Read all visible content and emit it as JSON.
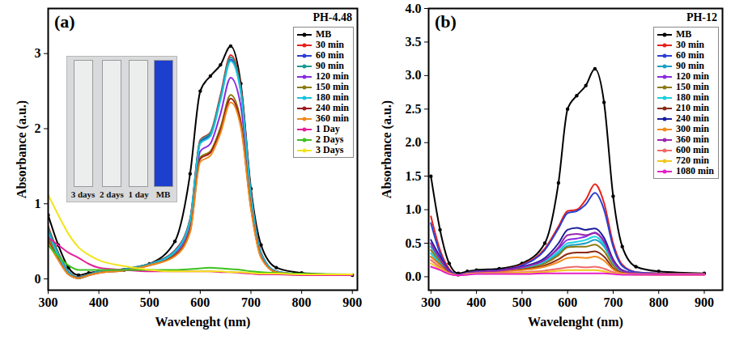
{
  "chart_data": [
    {
      "type": "line",
      "title": "(a)",
      "subtitle": "PH-4.48",
      "xlabel": "Wavelenght (nm)",
      "ylabel": "Absorbance (a.u.)",
      "annotations": [
        "3 days",
        "2 days",
        "1 day",
        "MB"
      ],
      "xlim": [
        300,
        910
      ],
      "xticks": [
        300,
        400,
        500,
        600,
        700,
        800,
        900
      ],
      "ylim": [
        -0.15,
        3.6
      ],
      "yticks": [
        0,
        1,
        2,
        3
      ],
      "grid": false,
      "legend": "top-right",
      "x": [
        300,
        320,
        340,
        360,
        380,
        400,
        450,
        500,
        550,
        580,
        600,
        620,
        640,
        660,
        680,
        700,
        720,
        750,
        800,
        900
      ],
      "series": [
        {
          "name": "MB",
          "color": "#000000",
          "marker": "circle",
          "values": [
            0.85,
            0.45,
            0.15,
            0.05,
            0.08,
            0.1,
            0.12,
            0.2,
            0.5,
            1.4,
            2.5,
            2.7,
            2.85,
            3.1,
            2.6,
            1.2,
            0.45,
            0.15,
            0.08,
            0.05
          ]
        },
        {
          "name": "30 min",
          "color": "#e8221b",
          "values": [
            0.7,
            0.35,
            0.1,
            0.02,
            0.06,
            0.1,
            0.13,
            0.2,
            0.38,
            0.8,
            1.85,
            1.95,
            2.45,
            2.98,
            2.55,
            1.15,
            0.35,
            0.1,
            0.06,
            0.05
          ]
        },
        {
          "name": "60 min",
          "color": "#2a3fd4",
          "values": [
            0.65,
            0.33,
            0.09,
            0.02,
            0.06,
            0.1,
            0.13,
            0.2,
            0.37,
            0.78,
            1.82,
            1.92,
            2.4,
            2.92,
            2.5,
            1.12,
            0.34,
            0.1,
            0.06,
            0.05
          ]
        },
        {
          "name": "90 min",
          "color": "#1a9b8f",
          "values": [
            0.68,
            0.34,
            0.1,
            0.02,
            0.06,
            0.1,
            0.13,
            0.2,
            0.37,
            0.79,
            1.84,
            1.94,
            2.42,
            2.95,
            2.52,
            1.13,
            0.34,
            0.1,
            0.06,
            0.05
          ]
        },
        {
          "name": "120 min",
          "color": "#8a2be2",
          "values": [
            0.6,
            0.3,
            0.08,
            0.01,
            0.05,
            0.09,
            0.12,
            0.19,
            0.34,
            0.72,
            1.7,
            1.8,
            2.2,
            2.68,
            2.3,
            1.05,
            0.32,
            0.09,
            0.06,
            0.05
          ]
        },
        {
          "name": "150 min",
          "color": "#8b7a0c",
          "values": [
            0.55,
            0.28,
            0.07,
            0.01,
            0.05,
            0.09,
            0.12,
            0.19,
            0.32,
            0.66,
            1.62,
            1.7,
            2.02,
            2.45,
            2.1,
            0.97,
            0.3,
            0.09,
            0.06,
            0.05
          ]
        },
        {
          "name": "180 min",
          "color": "#19c3e0",
          "values": [
            0.62,
            0.31,
            0.08,
            0.01,
            0.05,
            0.09,
            0.12,
            0.19,
            0.36,
            0.77,
            1.8,
            1.9,
            2.38,
            2.9,
            2.48,
            1.1,
            0.33,
            0.1,
            0.06,
            0.05
          ]
        },
        {
          "name": "240 min",
          "color": "#9b1c1c",
          "values": [
            0.5,
            0.26,
            0.06,
            0.01,
            0.05,
            0.08,
            0.11,
            0.18,
            0.31,
            0.64,
            1.6,
            1.68,
            1.98,
            2.4,
            2.06,
            0.95,
            0.29,
            0.09,
            0.06,
            0.05
          ]
        },
        {
          "name": "360 min",
          "color": "#f08a1c",
          "values": [
            0.48,
            0.25,
            0.06,
            0.01,
            0.05,
            0.08,
            0.11,
            0.18,
            0.3,
            0.62,
            1.56,
            1.64,
            1.94,
            2.35,
            2.02,
            0.93,
            0.28,
            0.09,
            0.06,
            0.05
          ]
        },
        {
          "name": "1 Day",
          "color": "#e61e9a",
          "values": [
            0.55,
            0.45,
            0.35,
            0.28,
            0.2,
            0.15,
            0.12,
            0.1,
            0.1,
            0.1,
            0.1,
            0.1,
            0.09,
            0.09,
            0.08,
            0.07,
            0.06,
            0.06,
            0.05,
            0.05
          ]
        },
        {
          "name": "2 Days",
          "color": "#3cc21e",
          "values": [
            0.45,
            0.3,
            0.18,
            0.12,
            0.12,
            0.12,
            0.12,
            0.12,
            0.12,
            0.13,
            0.14,
            0.15,
            0.14,
            0.13,
            0.12,
            0.1,
            0.09,
            0.08,
            0.07,
            0.06
          ]
        },
        {
          "name": "3 Days",
          "color": "#f2e41a",
          "values": [
            1.12,
            0.85,
            0.6,
            0.42,
            0.32,
            0.25,
            0.17,
            0.12,
            0.1,
            0.1,
            0.1,
            0.1,
            0.1,
            0.09,
            0.09,
            0.08,
            0.07,
            0.07,
            0.06,
            0.06
          ]
        }
      ]
    },
    {
      "type": "line",
      "title": "(b)",
      "subtitle": "PH-12",
      "xlabel": "Wavelenght (nm)",
      "ylabel": "Absorbance (a.u.)",
      "xlim": [
        295,
        940
      ],
      "xticks": [
        300,
        400,
        500,
        600,
        700,
        800,
        900
      ],
      "ylim": [
        -0.2,
        4.0
      ],
      "yticks": [
        {
          "value": 0,
          "label": "0.0"
        },
        0.5,
        {
          "value": 1,
          "label": "1.0"
        },
        1.5,
        {
          "value": 2,
          "label": "2.0"
        },
        2.5,
        {
          "value": 3,
          "label": "3.0"
        },
        3.5,
        {
          "value": 4,
          "label": "4.0"
        }
      ],
      "grid": false,
      "legend": "top-right",
      "x": [
        300,
        320,
        340,
        360,
        380,
        400,
        450,
        500,
        550,
        580,
        600,
        620,
        640,
        660,
        680,
        700,
        720,
        750,
        800,
        900
      ],
      "series": [
        {
          "name": "MB",
          "color": "#000000",
          "marker": "circle",
          "values": [
            1.5,
            0.7,
            0.2,
            0.05,
            0.08,
            0.1,
            0.12,
            0.2,
            0.5,
            1.4,
            2.5,
            2.7,
            2.85,
            3.1,
            2.6,
            1.2,
            0.45,
            0.15,
            0.08,
            0.05
          ]
        },
        {
          "name": "30 min",
          "color": "#e8221b",
          "values": [
            0.9,
            0.4,
            0.12,
            0.03,
            0.06,
            0.08,
            0.1,
            0.18,
            0.42,
            0.75,
            0.98,
            1.0,
            1.15,
            1.38,
            1.1,
            0.5,
            0.18,
            0.07,
            0.05,
            0.04
          ]
        },
        {
          "name": "60 min",
          "color": "#2a3fd4",
          "values": [
            0.8,
            0.35,
            0.1,
            0.03,
            0.06,
            0.08,
            0.1,
            0.17,
            0.4,
            0.72,
            0.95,
            0.98,
            1.08,
            1.25,
            1.0,
            0.45,
            0.16,
            0.07,
            0.05,
            0.04
          ]
        },
        {
          "name": "90 min",
          "color": "#1aa0c8",
          "values": [
            0.45,
            0.25,
            0.08,
            0.02,
            0.05,
            0.07,
            0.09,
            0.13,
            0.22,
            0.35,
            0.46,
            0.48,
            0.5,
            0.55,
            0.45,
            0.2,
            0.08,
            0.05,
            0.04,
            0.04
          ]
        },
        {
          "name": "120 min",
          "color": "#8a2be2",
          "values": [
            0.5,
            0.27,
            0.08,
            0.02,
            0.05,
            0.07,
            0.09,
            0.14,
            0.25,
            0.42,
            0.55,
            0.57,
            0.6,
            0.66,
            0.53,
            0.24,
            0.09,
            0.05,
            0.04,
            0.04
          ]
        },
        {
          "name": "150 min",
          "color": "#8b7a0c",
          "values": [
            0.4,
            0.22,
            0.07,
            0.02,
            0.05,
            0.07,
            0.09,
            0.12,
            0.2,
            0.32,
            0.44,
            0.45,
            0.45,
            0.48,
            0.38,
            0.17,
            0.07,
            0.05,
            0.04,
            0.04
          ]
        },
        {
          "name": "180 min",
          "color": "#19d0e0",
          "values": [
            0.35,
            0.2,
            0.06,
            0.02,
            0.05,
            0.07,
            0.09,
            0.13,
            0.23,
            0.38,
            0.5,
            0.52,
            0.55,
            0.6,
            0.48,
            0.21,
            0.08,
            0.05,
            0.04,
            0.04
          ]
        },
        {
          "name": "210 min",
          "color": "#8b2a12",
          "values": [
            0.3,
            0.18,
            0.06,
            0.02,
            0.05,
            0.06,
            0.08,
            0.11,
            0.17,
            0.26,
            0.34,
            0.36,
            0.36,
            0.38,
            0.3,
            0.13,
            0.06,
            0.04,
            0.04,
            0.04
          ]
        },
        {
          "name": "240 min",
          "color": "#1a1f9b",
          "values": [
            0.55,
            0.3,
            0.09,
            0.02,
            0.05,
            0.07,
            0.1,
            0.15,
            0.28,
            0.5,
            0.7,
            0.73,
            0.7,
            0.72,
            0.58,
            0.26,
            0.1,
            0.05,
            0.04,
            0.04
          ]
        },
        {
          "name": "300 min",
          "color": "#f08a1c",
          "values": [
            0.3,
            0.17,
            0.05,
            0.02,
            0.04,
            0.06,
            0.08,
            0.1,
            0.15,
            0.22,
            0.28,
            0.29,
            0.28,
            0.3,
            0.24,
            0.11,
            0.05,
            0.04,
            0.04,
            0.04
          ]
        },
        {
          "name": "360 min",
          "color": "#9b27b0",
          "values": [
            0.5,
            0.27,
            0.08,
            0.02,
            0.05,
            0.07,
            0.09,
            0.14,
            0.25,
            0.44,
            0.62,
            0.64,
            0.62,
            0.65,
            0.52,
            0.23,
            0.09,
            0.05,
            0.04,
            0.04
          ]
        },
        {
          "name": "600 min",
          "color": "#ef6a6a",
          "values": [
            0.25,
            0.14,
            0.05,
            0.02,
            0.04,
            0.05,
            0.06,
            0.07,
            0.09,
            0.12,
            0.14,
            0.15,
            0.14,
            0.15,
            0.12,
            0.07,
            0.04,
            0.04,
            0.03,
            0.03
          ]
        },
        {
          "name": "720 min",
          "color": "#f2c81a",
          "values": [
            0.2,
            0.12,
            0.05,
            0.02,
            0.04,
            0.05,
            0.05,
            0.06,
            0.07,
            0.09,
            0.1,
            0.1,
            0.1,
            0.1,
            0.08,
            0.05,
            0.04,
            0.03,
            0.03,
            0.03
          ]
        },
        {
          "name": "1080 min",
          "color": "#e61ec8",
          "values": [
            0.15,
            0.1,
            0.04,
            0.02,
            0.03,
            0.04,
            0.04,
            0.04,
            0.05,
            0.05,
            0.05,
            0.05,
            0.05,
            0.05,
            0.05,
            0.04,
            0.03,
            0.03,
            0.03,
            0.03
          ]
        }
      ]
    }
  ]
}
